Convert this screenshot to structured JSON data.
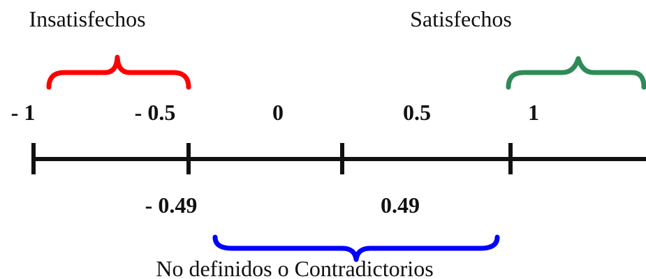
{
  "labels": {
    "unsatisfied": "Insatisfechos",
    "satisfied": "Satisfechos",
    "undefined": "No definidos o Contradictorios"
  },
  "scale": {
    "top_ticks": [
      "- 1",
      "- 0.5",
      "0",
      "0.5",
      "1"
    ],
    "bottom_ticks": [
      "- 0.49",
      "0.49"
    ]
  },
  "colors": {
    "unsatisfied": "#ff0000",
    "satisfied": "#2e8b57",
    "undefined": "#0000ff",
    "axis": "#111111"
  }
}
